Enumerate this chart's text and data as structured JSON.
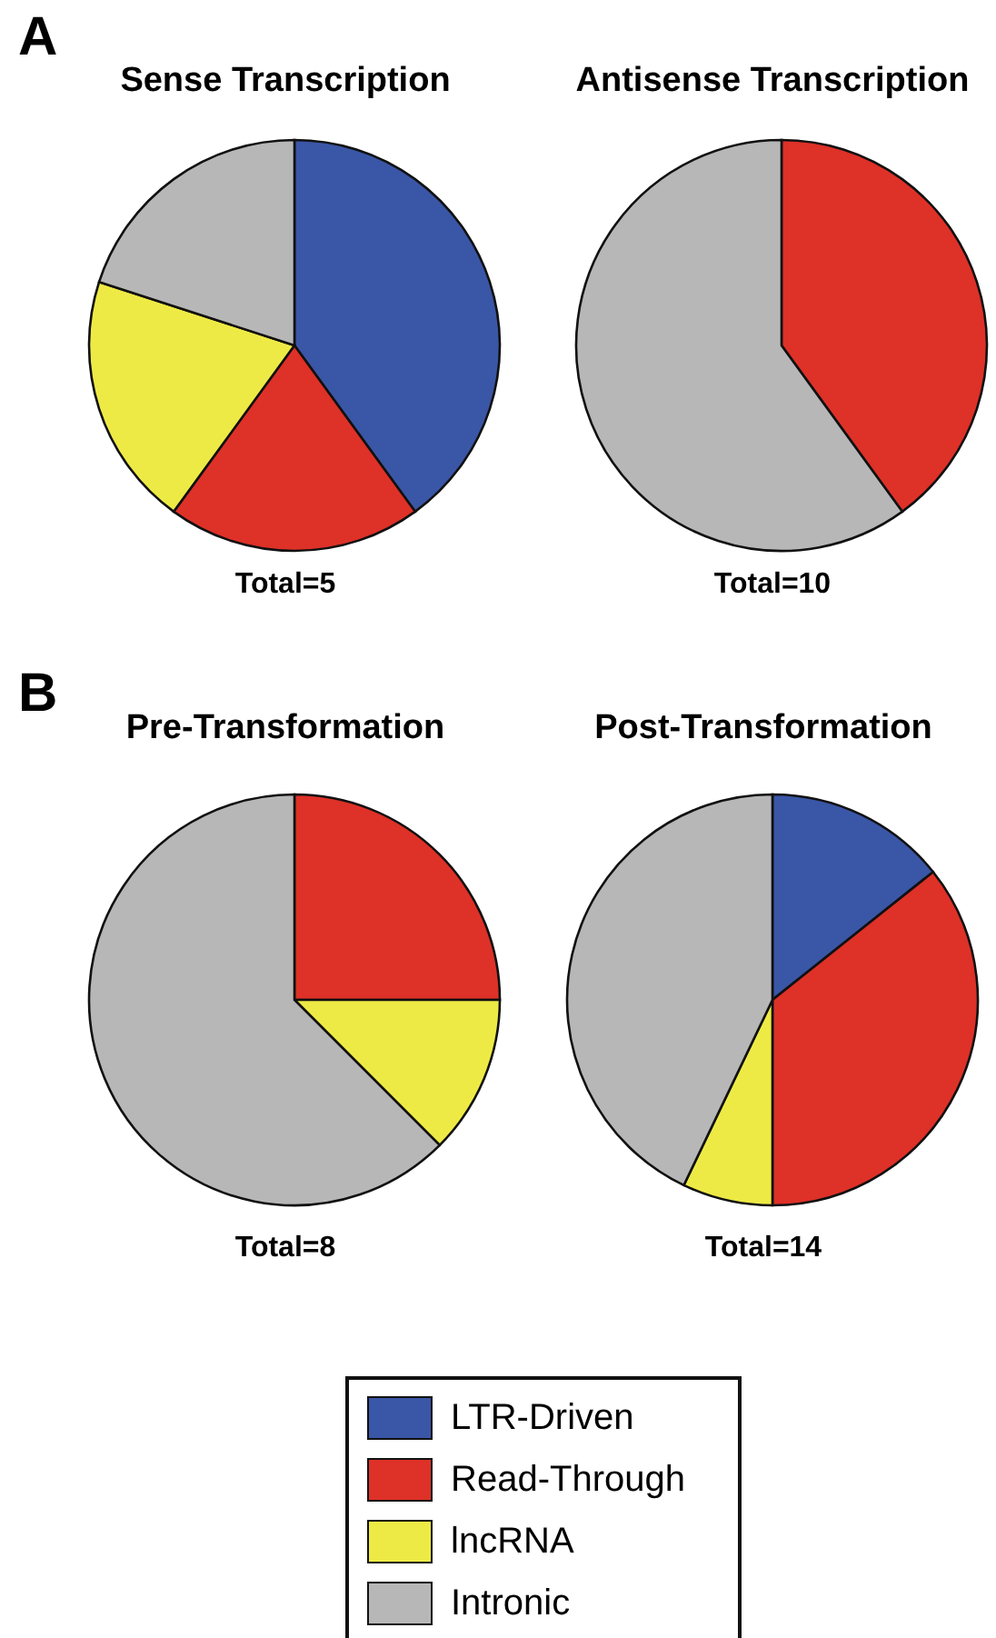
{
  "chart_data": [
    {
      "type": "pie",
      "title": "Sense Transcription",
      "subtitle": "Total=5",
      "annotations": [
        "A"
      ],
      "categories": [
        "LTR-Driven",
        "Read-Through",
        "lncRNA",
        "Intronic"
      ],
      "values": [
        40,
        20,
        20,
        20
      ],
      "colors": [
        "#3a56a6",
        "#de3128",
        "#eeea45",
        "#b7b7b7"
      ],
      "legend": "bottom"
    },
    {
      "type": "pie",
      "title": "Antisense Transcription",
      "subtitle": "Total=10",
      "categories": [
        null,
        null
      ],
      "values": [
        40,
        60
      ],
      "colors": [
        "#de3128",
        "#b7b7b7"
      ]
    },
    {
      "type": "pie",
      "title": "Pre-Transformation",
      "subtitle": "Total=8",
      "annotations": [
        "B"
      ],
      "categories": [
        null,
        null,
        null
      ],
      "values": [
        25,
        12.5,
        62.5
      ],
      "colors": [
        "#de3128",
        "#eeea45",
        "#b7b7b7"
      ]
    },
    {
      "type": "pie",
      "title": "Post-Transformation",
      "subtitle": "Total=14",
      "categories": [
        null,
        null,
        null,
        null
      ],
      "values": [
        14.3,
        35.7,
        7.1,
        42.9
      ],
      "colors": [
        "#3a56a6",
        "#de3128",
        "#eeea45",
        "#b7b7b7"
      ]
    }
  ]
}
